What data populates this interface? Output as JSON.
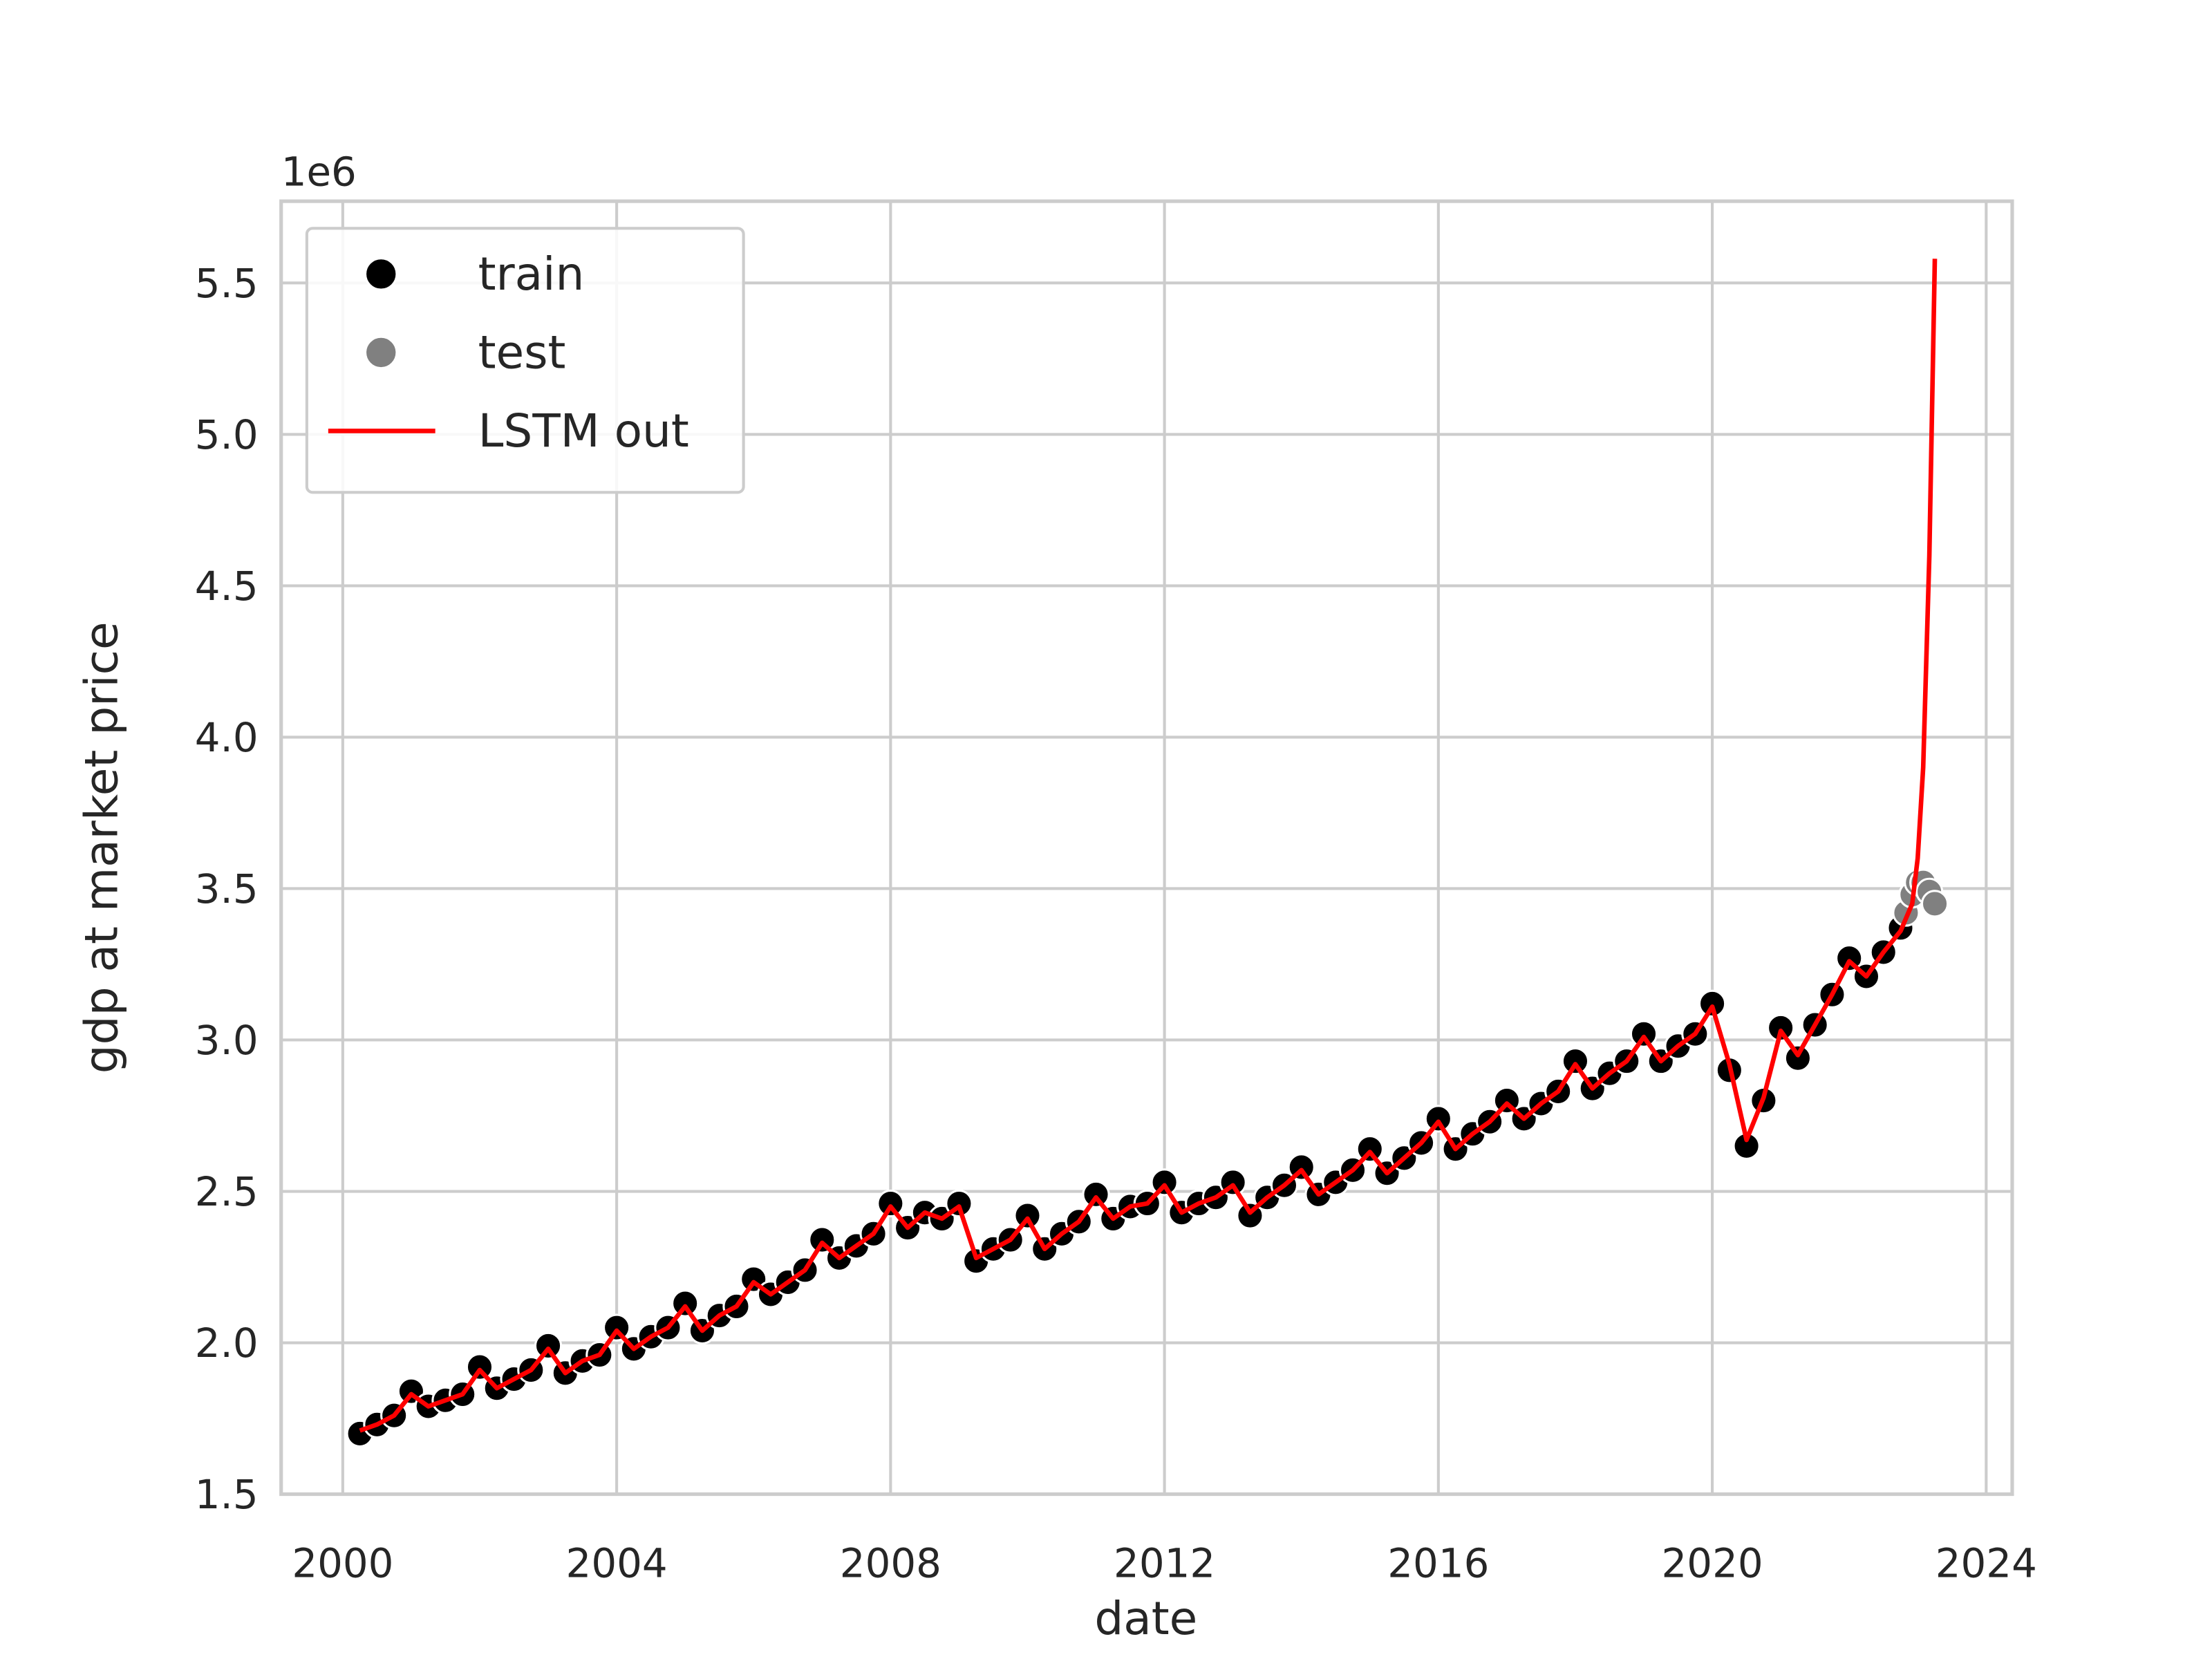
{
  "chart_data": {
    "type": "scatter",
    "xlabel": "date",
    "ylabel": "gdp at market price",
    "y_offset_label": "1e6",
    "xlim": [
      1999.1,
      2024.38
    ],
    "ylim": [
      1.5,
      5.77
    ],
    "xticks": [
      2000,
      2004,
      2008,
      2012,
      2016,
      2020,
      2024
    ],
    "yticks": [
      1.5,
      {
        "value": 2,
        "label": "2.0"
      },
      2.5,
      {
        "value": 3,
        "label": "3.0"
      },
      3.5,
      {
        "value": 4,
        "label": "4.0"
      },
      4.5,
      {
        "value": 5,
        "label": "5.0"
      },
      5.5
    ],
    "grid": true,
    "legend": "upper left",
    "series": [
      {
        "name": "train",
        "color": "#000000",
        "kind": "scatter",
        "x": [
          2000.25,
          2000.5,
          2000.75,
          2001,
          2001.25,
          2001.5,
          2001.75,
          2002,
          2002.25,
          2002.5,
          2002.75,
          2003,
          2003.25,
          2003.5,
          2003.75,
          2004,
          2004.25,
          2004.5,
          2004.75,
          2005,
          2005.25,
          2005.5,
          2005.75,
          2006,
          2006.25,
          2006.5,
          2006.75,
          2007,
          2007.25,
          2007.5,
          2007.75,
          2008,
          2008.25,
          2008.5,
          2008.75,
          2009,
          2009.25,
          2009.5,
          2009.75,
          2010,
          2010.25,
          2010.5,
          2010.75,
          2011,
          2011.25,
          2011.5,
          2011.75,
          2012,
          2012.25,
          2012.5,
          2012.75,
          2013,
          2013.25,
          2013.5,
          2013.75,
          2014,
          2014.25,
          2014.5,
          2014.75,
          2015,
          2015.25,
          2015.5,
          2015.75,
          2016,
          2016.25,
          2016.5,
          2016.75,
          2017,
          2017.25,
          2017.5,
          2017.75,
          2018,
          2018.25,
          2018.5,
          2018.75,
          2019,
          2019.25,
          2019.5,
          2019.75,
          2020,
          2020.25,
          2020.5,
          2020.75,
          2021,
          2021.25,
          2021.5,
          2021.75,
          2022,
          2022.25,
          2022.5,
          2022.75
        ],
        "values": [
          1.7,
          1.73,
          1.76,
          1.84,
          1.79,
          1.81,
          1.83,
          1.92,
          1.85,
          1.88,
          1.91,
          1.99,
          1.9,
          1.94,
          1.96,
          2.05,
          1.98,
          2.02,
          2.05,
          2.13,
          2.04,
          2.09,
          2.12,
          2.21,
          2.16,
          2.2,
          2.24,
          2.34,
          2.28,
          2.32,
          2.36,
          2.46,
          2.38,
          2.43,
          2.41,
          2.46,
          2.27,
          2.31,
          2.34,
          2.42,
          2.31,
          2.36,
          2.4,
          2.49,
          2.41,
          2.45,
          2.46,
          2.53,
          2.43,
          2.46,
          2.48,
          2.53,
          2.42,
          2.48,
          2.52,
          2.58,
          2.49,
          2.53,
          2.57,
          2.64,
          2.56,
          2.61,
          2.66,
          2.74,
          2.64,
          2.69,
          2.73,
          2.8,
          2.74,
          2.79,
          2.83,
          2.93,
          2.84,
          2.89,
          2.93,
          3.02,
          2.93,
          2.98,
          3.02,
          3.12,
          2.9,
          2.65,
          2.8,
          3.04,
          2.94,
          3.05,
          3.15,
          3.27,
          3.21,
          3.29,
          3.37
        ]
      },
      {
        "name": "test",
        "color": "#808080",
        "kind": "scatter",
        "x": [
          2022.83,
          2022.92,
          2023,
          2023.08,
          2023.17,
          2023.25
        ],
        "values": [
          3.42,
          3.48,
          3.52,
          3.52,
          3.49,
          3.45
        ]
      },
      {
        "name": "LSTM out",
        "color": "#ff0000",
        "kind": "line",
        "x": [
          2000.25,
          2000.5,
          2000.75,
          2001,
          2001.25,
          2001.5,
          2001.75,
          2002,
          2002.25,
          2002.5,
          2002.75,
          2003,
          2003.25,
          2003.5,
          2003.75,
          2004,
          2004.25,
          2004.5,
          2004.75,
          2005,
          2005.25,
          2005.5,
          2005.75,
          2006,
          2006.25,
          2006.5,
          2006.75,
          2007,
          2007.25,
          2007.5,
          2007.75,
          2008,
          2008.25,
          2008.5,
          2008.75,
          2009,
          2009.25,
          2009.5,
          2009.75,
          2010,
          2010.25,
          2010.5,
          2010.75,
          2011,
          2011.25,
          2011.5,
          2011.75,
          2012,
          2012.25,
          2012.5,
          2012.75,
          2013,
          2013.25,
          2013.5,
          2013.75,
          2014,
          2014.25,
          2014.5,
          2014.75,
          2015,
          2015.25,
          2015.5,
          2015.75,
          2016,
          2016.25,
          2016.5,
          2016.75,
          2017,
          2017.25,
          2017.5,
          2017.75,
          2018,
          2018.25,
          2018.5,
          2018.75,
          2019,
          2019.25,
          2019.5,
          2019.75,
          2020,
          2020.25,
          2020.5,
          2020.75,
          2021,
          2021.25,
          2021.5,
          2021.75,
          2022,
          2022.25,
          2022.5,
          2022.75,
          2022.92,
          2023,
          2023.08,
          2023.17,
          2023.25
        ],
        "values": [
          1.71,
          1.73,
          1.76,
          1.83,
          1.79,
          1.81,
          1.83,
          1.91,
          1.85,
          1.88,
          1.91,
          1.98,
          1.9,
          1.94,
          1.96,
          2.04,
          1.98,
          2.02,
          2.05,
          2.12,
          2.04,
          2.09,
          2.12,
          2.2,
          2.16,
          2.2,
          2.24,
          2.33,
          2.28,
          2.32,
          2.36,
          2.45,
          2.38,
          2.43,
          2.41,
          2.45,
          2.28,
          2.31,
          2.34,
          2.41,
          2.31,
          2.36,
          2.4,
          2.48,
          2.41,
          2.45,
          2.46,
          2.52,
          2.43,
          2.46,
          2.48,
          2.52,
          2.43,
          2.48,
          2.52,
          2.57,
          2.49,
          2.53,
          2.57,
          2.63,
          2.56,
          2.61,
          2.66,
          2.73,
          2.64,
          2.69,
          2.73,
          2.79,
          2.74,
          2.79,
          2.83,
          2.92,
          2.84,
          2.89,
          2.93,
          3.01,
          2.93,
          2.98,
          3.02,
          3.11,
          2.92,
          2.67,
          2.81,
          3.03,
          2.95,
          3.05,
          3.15,
          3.26,
          3.21,
          3.29,
          3.36,
          3.45,
          3.6,
          3.9,
          4.6,
          5.58
        ]
      }
    ]
  }
}
